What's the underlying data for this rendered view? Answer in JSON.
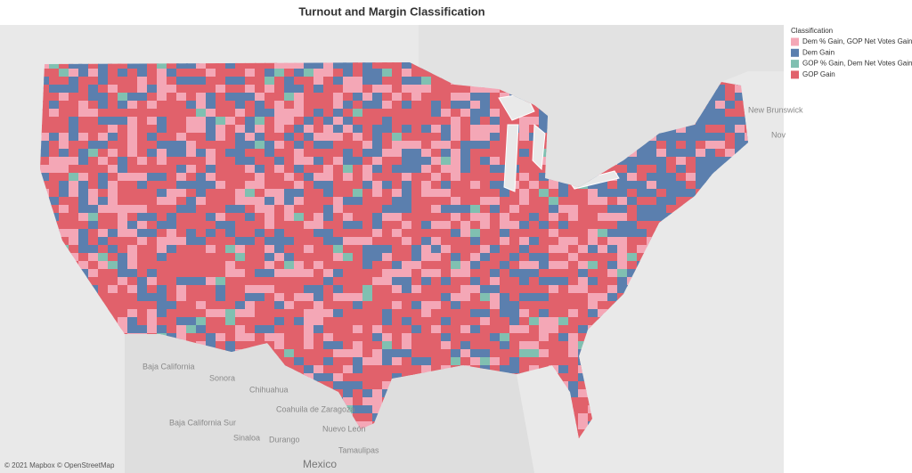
{
  "title": "Turnout and Margin Classification",
  "legend": {
    "title": "Classification",
    "items": [
      {
        "label": "Dem % Gain, GOP Net Votes Gain",
        "color": "#f4a7b6"
      },
      {
        "label": "Dem Gain",
        "color": "#5b7fae"
      },
      {
        "label": "GOP % Gain, Dem Net Votes Gain",
        "color": "#80c0b1"
      },
      {
        "label": "GOP Gain",
        "color": "#e1616b"
      }
    ]
  },
  "map": {
    "labels": [
      "Baja California",
      "Sonora",
      "Chihuahua",
      "Coahuila de Zaragoza",
      "Nuevo León",
      "Baja California Sur",
      "Sinaloa",
      "Durango",
      "Tamaulipas",
      "Mexico",
      "New Brunswick",
      "Nov"
    ],
    "attribution": "© 2021 Mapbox © OpenStreetMap"
  }
}
